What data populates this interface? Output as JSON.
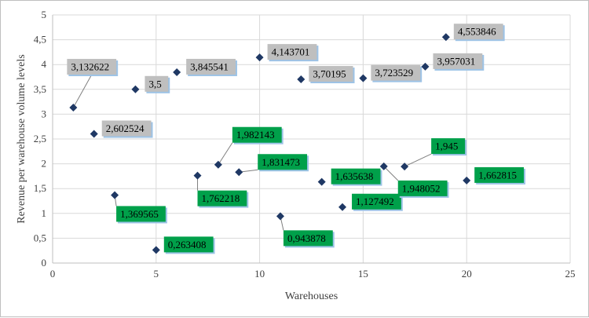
{
  "chart_data": {
    "type": "scatter",
    "title": "",
    "xlabel": "Warehouses",
    "ylabel": "Revenue per warehouse volume levels",
    "xlim": [
      0,
      25
    ],
    "ylim": [
      0,
      5
    ],
    "x_ticks": [
      "0",
      "5",
      "10",
      "15",
      "20",
      "25"
    ],
    "y_ticks": [
      "0",
      "0,5",
      "1",
      "1,5",
      "2",
      "2,5",
      "3",
      "3,5",
      "4",
      "4,5",
      "5"
    ],
    "grid": "vertical and horizontal major gridlines",
    "marker": "diamond",
    "colors": {
      "marker": "#1f3864",
      "label_above_avg": "#bfbfbf",
      "label_below_avg": "#00a04a",
      "grid": "#d9d9d9",
      "leader": "#7f7f7f"
    },
    "points": [
      {
        "x": 1,
        "y": 3.132622,
        "label": "3,132622",
        "group": "gray"
      },
      {
        "x": 2,
        "y": 2.602524,
        "label": "2,602524",
        "group": "gray"
      },
      {
        "x": 3,
        "y": 1.369565,
        "label": "1,369565",
        "group": "green"
      },
      {
        "x": 4,
        "y": 3.5,
        "label": "3,5",
        "group": "gray"
      },
      {
        "x": 5,
        "y": 0.263408,
        "label": "0,263408",
        "group": "green"
      },
      {
        "x": 6,
        "y": 3.845541,
        "label": "3,845541",
        "group": "gray"
      },
      {
        "x": 7,
        "y": 1.762218,
        "label": "1,762218",
        "group": "green"
      },
      {
        "x": 8,
        "y": 1.982143,
        "label": "1,982143",
        "group": "green"
      },
      {
        "x": 9,
        "y": 1.831473,
        "label": "1,831473",
        "group": "green"
      },
      {
        "x": 10,
        "y": 4.143701,
        "label": "4,143701",
        "group": "gray"
      },
      {
        "x": 11,
        "y": 0.943878,
        "label": "0,943878",
        "group": "green"
      },
      {
        "x": 12,
        "y": 3.70195,
        "label": "3,70195",
        "group": "gray"
      },
      {
        "x": 13,
        "y": 1.635638,
        "label": "1,635638",
        "group": "green"
      },
      {
        "x": 14,
        "y": 1.127492,
        "label": "1,127492",
        "group": "green"
      },
      {
        "x": 15,
        "y": 3.723529,
        "label": "3,723529",
        "group": "gray"
      },
      {
        "x": 16,
        "y": 1.948052,
        "label": "1,948052",
        "group": "green"
      },
      {
        "x": 17,
        "y": 1.945,
        "label": "1,945",
        "group": "green"
      },
      {
        "x": 18,
        "y": 3.957031,
        "label": "3,957031",
        "group": "gray"
      },
      {
        "x": 19,
        "y": 4.553846,
        "label": "4,553846",
        "group": "gray"
      },
      {
        "x": 20,
        "y": 1.662815,
        "label": "1,662815",
        "group": "green"
      }
    ]
  }
}
